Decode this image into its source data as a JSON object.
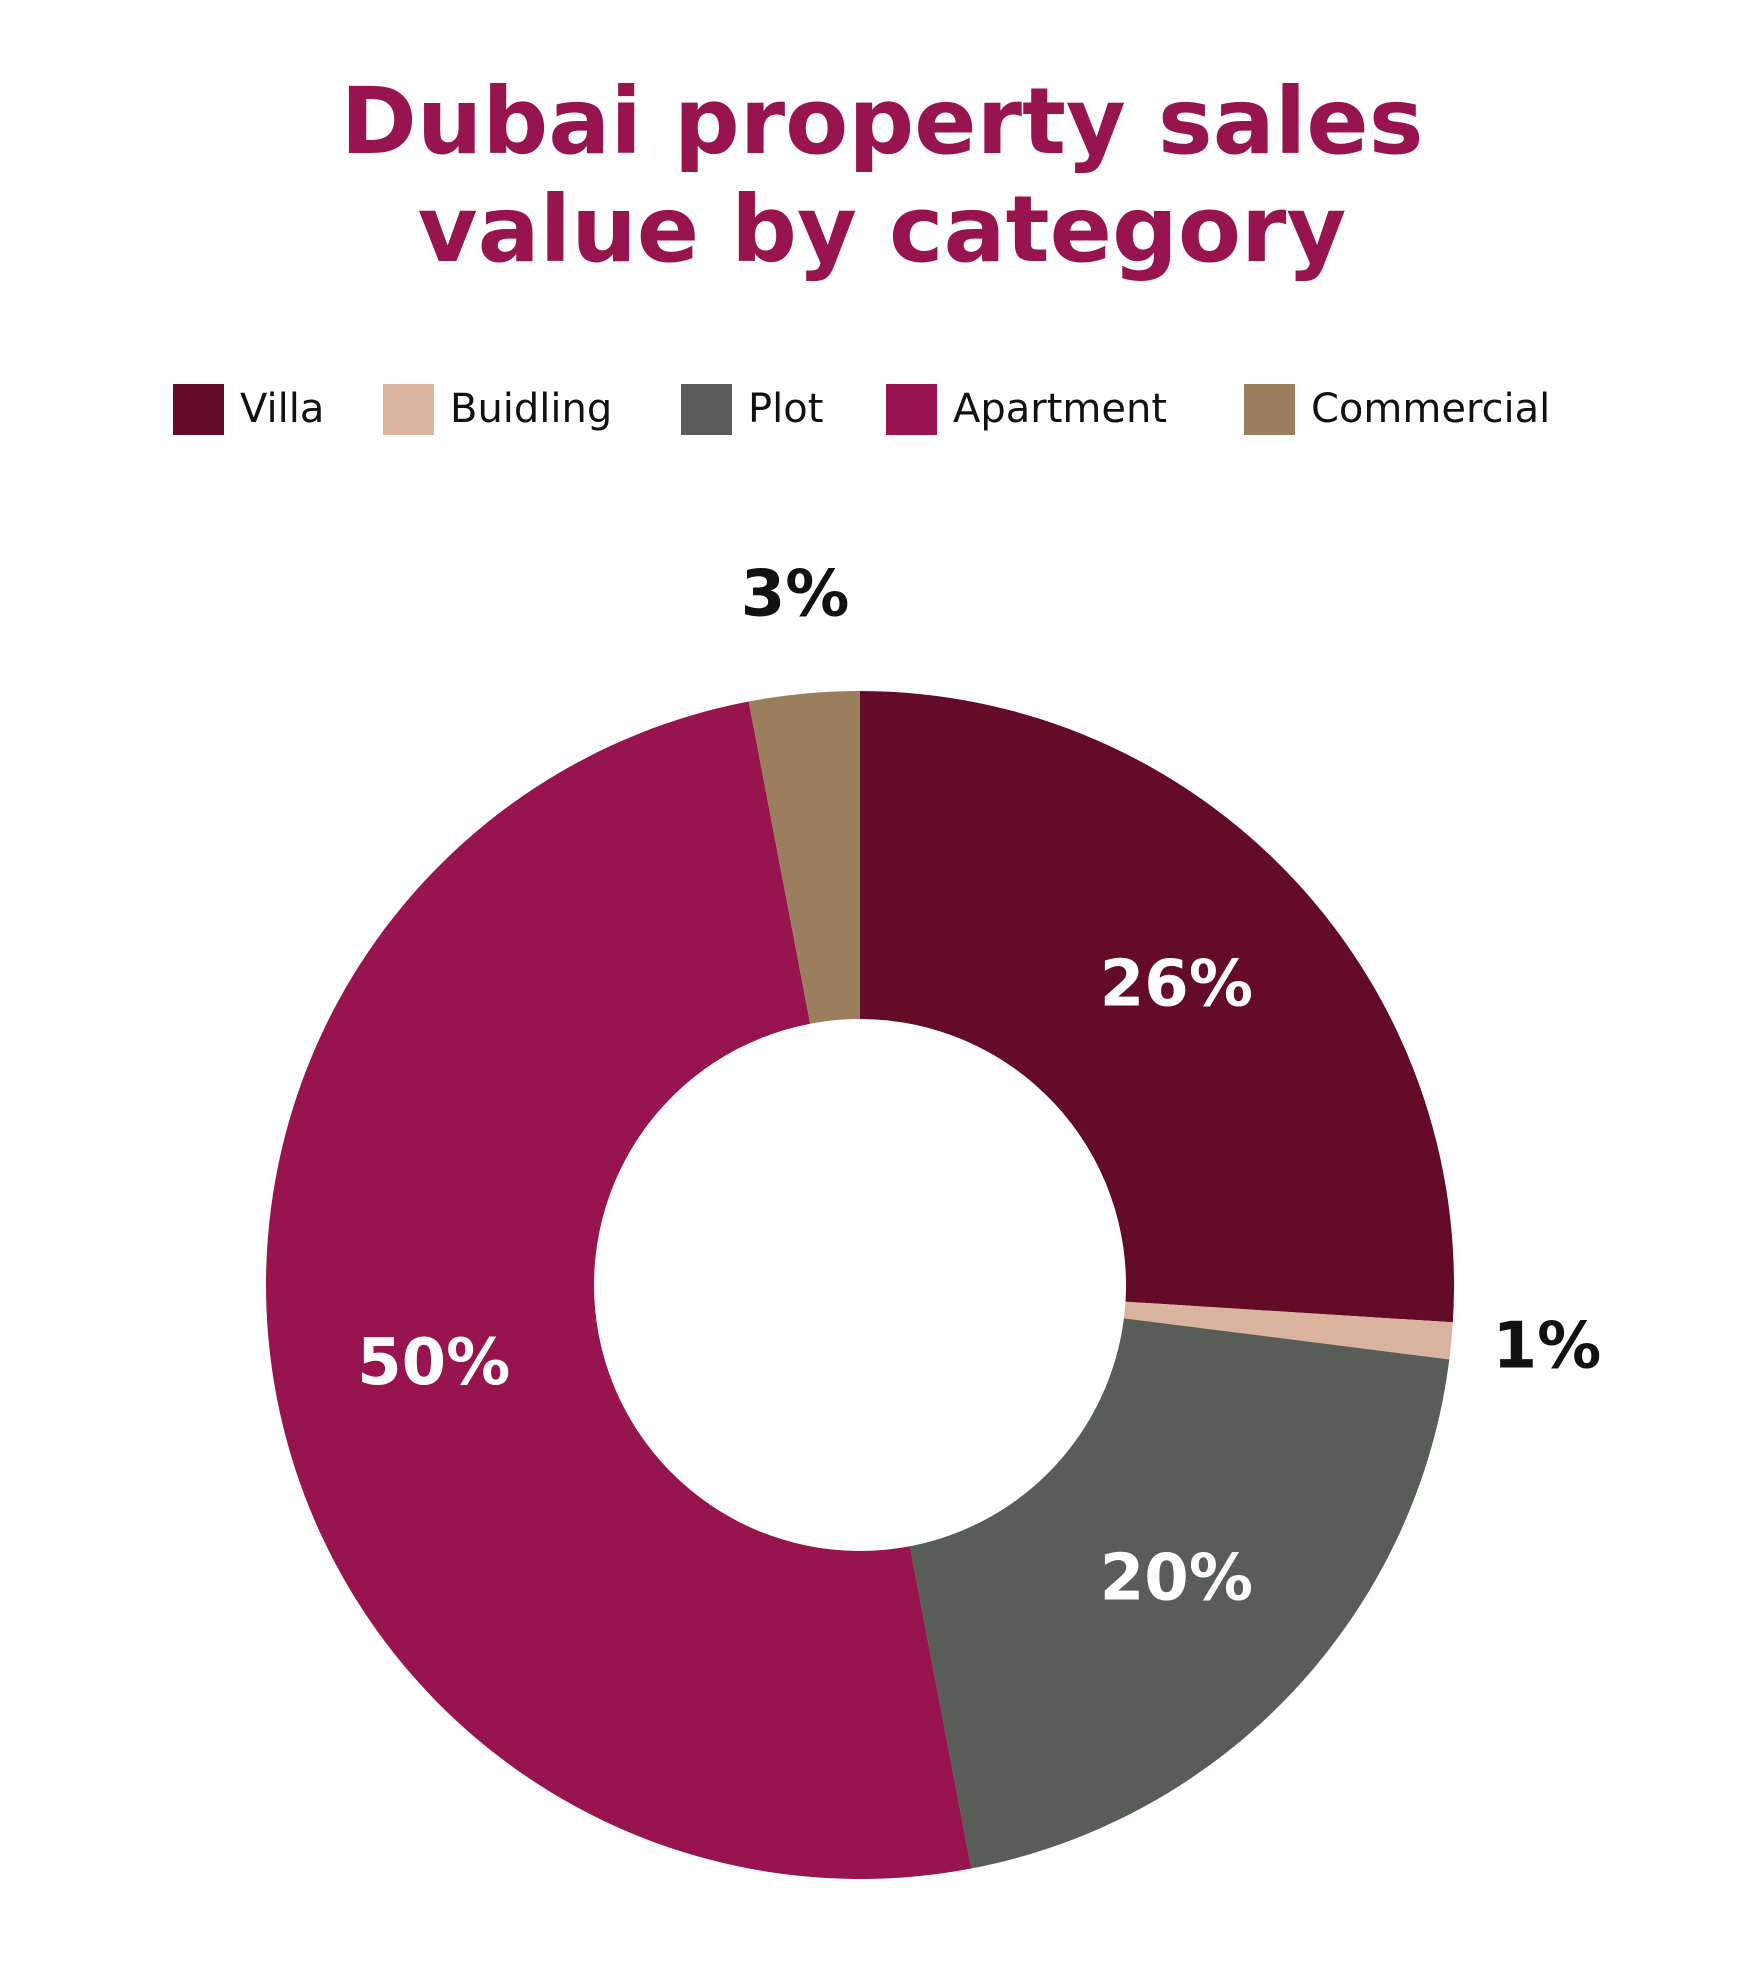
{
  "chart_data": {
    "type": "pie",
    "title": "Dubai property sales value by category",
    "categories": [
      "Villa",
      "Buidling",
      "Plot",
      "Apartment",
      "Commercial"
    ],
    "values": [
      26,
      1,
      20,
      50,
      3
    ],
    "value_labels": [
      "26%",
      "1%",
      "20%",
      "50%",
      "3%"
    ],
    "colors": [
      "#630b27",
      "#d9b39d",
      "#595d57",
      "#98144e",
      "#9a7e5e"
    ],
    "donut": true
  }
}
